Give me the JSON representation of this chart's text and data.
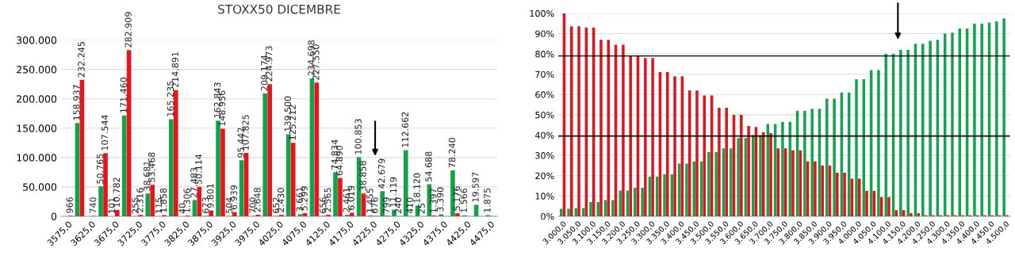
{
  "chart_data": [
    {
      "type": "bar",
      "title": "STOXX50 DICEMBRE",
      "categories": [
        "3575,0",
        null,
        "3625,0",
        null,
        "3675,0",
        null,
        "3725,0",
        null,
        "3775,0",
        null,
        "3825,0",
        null,
        "3875,0",
        null,
        "3925,0",
        null,
        "3975,0",
        null,
        "4025,0",
        null,
        "4075,0",
        null,
        "4125,0",
        null,
        "4175,0",
        null,
        "4225,0",
        null,
        "4275,0",
        null,
        "4325,0",
        null,
        "4375,0",
        null,
        "4425,0",
        null,
        "4475,0"
      ],
      "series": [
        {
          "color": "#13a14b",
          "values": [
            null,
            158937,
            null,
            50765,
            101,
            171460,
            255,
            38681,
            115,
            165235,
            40,
            27483,
            673,
            162843,
            504,
            95442,
            700,
            209174,
            652,
            139500,
            3661,
            234698,
            656,
            74834,
            2461,
            100853,
            1455,
            42679,
            11119,
            112662,
            18120,
            54688,
            3390,
            78240,
            1566,
            19597,
            1875
          ],
          "value_labels": [
            null,
            "158.937",
            null,
            "50.765",
            "101",
            "171.460",
            "255",
            "38.681",
            "115",
            "165.235",
            "40",
            "27.483",
            "673",
            "162.843",
            "504",
            "95.442",
            "700",
            "209.174",
            "652",
            "139.500",
            "3.661",
            "234.698",
            "656",
            "74.834",
            "2.461",
            "100.853",
            "1.455",
            "42.679",
            "11.119",
            "112.662",
            "18.120",
            "54.688",
            "3.390",
            "78.240",
            "1.566",
            "19.597",
            "1.875"
          ]
        },
        {
          "color": "#e8141c",
          "values": [
            966,
            232245,
            740,
            107544,
            10782,
            282909,
            2316,
            53468,
            1858,
            214891,
            1306,
            50114,
            9801,
            148956,
            6939,
            107825,
            2648,
            224973,
            2430,
            125212,
            5299,
            227550,
            2565,
            64890,
            6019,
            38858,
            676,
            799,
            240,
            410,
            25,
            1397,
            null,
            5176,
            null,
            null,
            null
          ],
          "value_labels": [
            "966",
            "232.245",
            "740",
            "107.544",
            "10.782",
            "282.909",
            "2.316",
            "53.468",
            "1.858",
            "214.891",
            "1.306",
            "50.114",
            "9.801",
            "148.956",
            "6.939",
            "107.825",
            "2.648",
            "224.973",
            "2.430",
            "125.212",
            "5.299",
            "227.550",
            "2.565",
            "64.890",
            "6.019",
            "38.858",
            "676",
            "799",
            "240",
            "410",
            "25",
            "1.397",
            null,
            "5.176",
            null,
            null,
            null
          ]
        }
      ],
      "ylim": [
        0,
        300000
      ],
      "yticks": [
        {
          "value": 0,
          "label": "0"
        },
        {
          "value": 50000,
          "label": "50.000"
        },
        {
          "value": 100000,
          "label": "100.000"
        },
        {
          "value": 150000,
          "label": "150.000"
        },
        {
          "value": 200000,
          "label": "200.000"
        },
        {
          "value": 250000,
          "label": "250.000"
        },
        {
          "value": 300000,
          "label": "300.000"
        }
      ],
      "grid": "y",
      "legend": false
    },
    {
      "type": "bar",
      "categories": [
        "3.000,0",
        null,
        "3.050,0",
        null,
        "3.100,0",
        null,
        "3.150,0",
        null,
        "3.200,0",
        null,
        "3.250,0",
        null,
        "3.300,0",
        null,
        "3.350,0",
        null,
        "3.400,0",
        null,
        "3.450,0",
        null,
        "3.500,0",
        null,
        "3.550,0",
        null,
        "3.600,0",
        null,
        "3.650,0",
        null,
        "3.700,0",
        null,
        "3.750,0",
        null,
        "3.800,0",
        null,
        "3.850,0",
        null,
        "3.900,0",
        null,
        "3.950,0",
        null,
        "4.000,0",
        null,
        "4.050,0",
        null,
        "4.100,0",
        null,
        "4.150,0",
        null,
        "4.200,0",
        null,
        "4.250,0",
        null,
        "4.300,0",
        null,
        "4.350,0",
        null,
        "4.400,0",
        null,
        "4.450,0",
        null,
        "4.500,0"
      ],
      "series": [
        {
          "color": "#15a350",
          "values": [
            3.7,
            3.7,
            4,
            4,
            7,
            7,
            8,
            8,
            12.7,
            12.7,
            14,
            14,
            19.5,
            19.5,
            20.7,
            20.7,
            26,
            26,
            27,
            27,
            31.7,
            31.7,
            33.5,
            33.5,
            38.5,
            38.5,
            40,
            40,
            45.5,
            45.5,
            46.5,
            46.5,
            52,
            52,
            53,
            53,
            58,
            58,
            61,
            61,
            67.5,
            67.5,
            72,
            72,
            80,
            80,
            82,
            82,
            85,
            85,
            86.5,
            87,
            90,
            90.5,
            92.5,
            92.5,
            95,
            95,
            95.5,
            96,
            97.5
          ]
        },
        {
          "color": "#e0141c",
          "values": [
            100,
            93.6,
            93.6,
            93,
            93,
            87,
            87,
            84.5,
            84.5,
            79,
            79,
            78,
            78,
            71,
            71,
            69,
            69,
            62,
            62,
            59.5,
            59.5,
            53.5,
            53.5,
            50,
            50,
            44.5,
            44,
            41.5,
            41,
            33.5,
            33.5,
            32.5,
            32.5,
            27,
            27,
            25,
            25,
            21.5,
            21.5,
            18.5,
            18.5,
            12.5,
            12.5,
            9.5,
            9.5,
            3,
            3,
            1.5,
            1.5,
            0.5,
            0.5,
            0.5,
            0.5,
            0.5,
            0.5,
            0.5,
            0.5,
            0.5,
            0.5,
            0.5,
            0.5
          ]
        }
      ],
      "ylim": [
        0,
        100
      ],
      "yticks": [
        {
          "value": 0,
          "label": "0%"
        },
        {
          "value": 10,
          "label": "10%"
        },
        {
          "value": 20,
          "label": "20%"
        },
        {
          "value": 30,
          "label": "30%"
        },
        {
          "value": 40,
          "label": "40%"
        },
        {
          "value": 50,
          "label": "50%"
        },
        {
          "value": 60,
          "label": "60%"
        },
        {
          "value": 70,
          "label": "70%"
        },
        {
          "value": 80,
          "label": "80%"
        },
        {
          "value": 90,
          "label": "90%"
        },
        {
          "value": 100,
          "label": "100%"
        }
      ],
      "ref_lines": [
        {
          "axis": "y",
          "value": 79,
          "color": "#000000"
        },
        {
          "axis": "y",
          "value": 39.5,
          "color": "#000000"
        }
      ],
      "grid": "y",
      "legend": false
    }
  ]
}
